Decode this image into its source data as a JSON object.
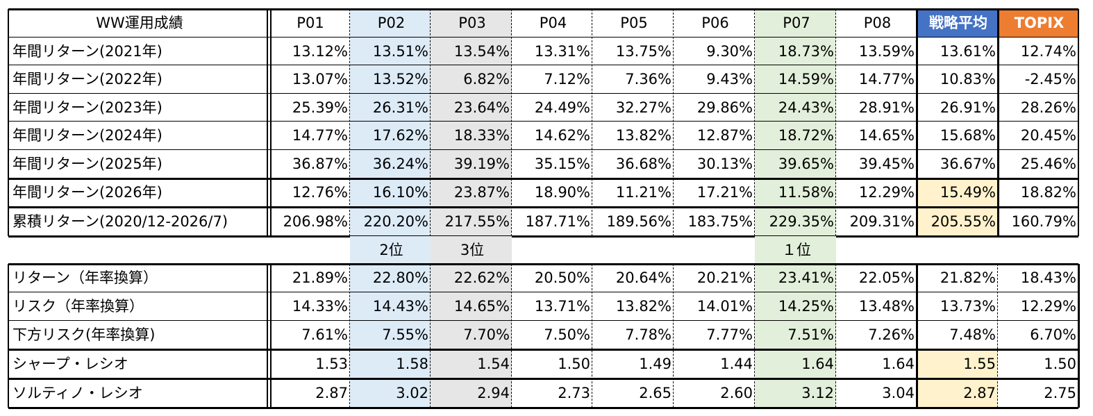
{
  "table1": {
    "header": [
      "WW運用成績",
      "P01",
      "P02",
      "P03",
      "P04",
      "P05",
      "P06",
      "P07",
      "P08",
      "戦略平均",
      "TOPIX"
    ],
    "rows": [
      {
        "label": "年間リターン(2021年)",
        "cells": [
          "13.12%",
          "13.51%",
          "13.54%",
          "13.31%",
          "13.75%",
          "9.30%",
          "18.73%",
          "13.59%",
          "13.61%",
          "12.74%"
        ]
      },
      {
        "label": "年間リターン(2022年)",
        "cells": [
          "13.07%",
          "13.52%",
          "6.82%",
          "7.12%",
          "7.36%",
          "9.43%",
          "14.59%",
          "14.77%",
          "10.83%",
          "-2.45%"
        ]
      },
      {
        "label": "年間リターン(2023年)",
        "cells": [
          "25.39%",
          "26.31%",
          "23.64%",
          "24.49%",
          "32.27%",
          "29.86%",
          "24.43%",
          "28.91%",
          "26.91%",
          "28.26%"
        ]
      },
      {
        "label": "年間リターン(2024年)",
        "cells": [
          "14.77%",
          "17.62%",
          "18.33%",
          "14.62%",
          "13.82%",
          "12.87%",
          "18.72%",
          "14.65%",
          "15.68%",
          "20.45%"
        ]
      },
      {
        "label": "年間リターン(2025年)",
        "cells": [
          "36.87%",
          "36.24%",
          "39.19%",
          "35.15%",
          "36.68%",
          "30.13%",
          "39.65%",
          "39.45%",
          "36.67%",
          "25.46%"
        ]
      },
      {
        "label": "年間リターン(2026年)",
        "cells": [
          "12.76%",
          "16.10%",
          "23.87%",
          "18.90%",
          "11.21%",
          "17.21%",
          "11.58%",
          "12.29%",
          "15.49%",
          "18.82%"
        ]
      },
      {
        "label": "累積リターン(2020/12-2026/7)",
        "cells": [
          "206.98%",
          "220.20%",
          "217.55%",
          "187.71%",
          "189.56%",
          "183.75%",
          "229.35%",
          "209.31%",
          "205.55%",
          "160.79%"
        ]
      }
    ]
  },
  "ranks": [
    null,
    "2位",
    "3位",
    null,
    null,
    null,
    "１位",
    null,
    null,
    null
  ],
  "table2": {
    "rows": [
      {
        "label": "リターン（年率換算）",
        "cells": [
          "21.89%",
          "22.80%",
          "22.62%",
          "20.50%",
          "20.64%",
          "20.21%",
          "23.41%",
          "22.05%",
          "21.82%",
          "18.43%"
        ]
      },
      {
        "label": "リスク（年率換算）",
        "cells": [
          "14.33%",
          "14.43%",
          "14.65%",
          "13.71%",
          "13.82%",
          "14.01%",
          "14.25%",
          "13.48%",
          "13.73%",
          "12.29%"
        ]
      },
      {
        "label": "下方リスク(年率換算)",
        "cells": [
          "7.61%",
          "7.55%",
          "7.70%",
          "7.50%",
          "7.78%",
          "7.77%",
          "7.51%",
          "7.26%",
          "7.48%",
          "6.70%"
        ]
      },
      {
        "label": "シャープ・レシオ",
        "cells": [
          "1.53",
          "1.58",
          "1.54",
          "1.50",
          "1.49",
          "1.44",
          "1.64",
          "1.64",
          "1.55",
          "1.50"
        ]
      },
      {
        "label": "ソルティノ・レシオ",
        "cells": [
          "2.87",
          "3.02",
          "2.94",
          "2.73",
          "2.65",
          "2.60",
          "3.12",
          "3.04",
          "2.87",
          "2.75"
        ]
      }
    ]
  }
}
